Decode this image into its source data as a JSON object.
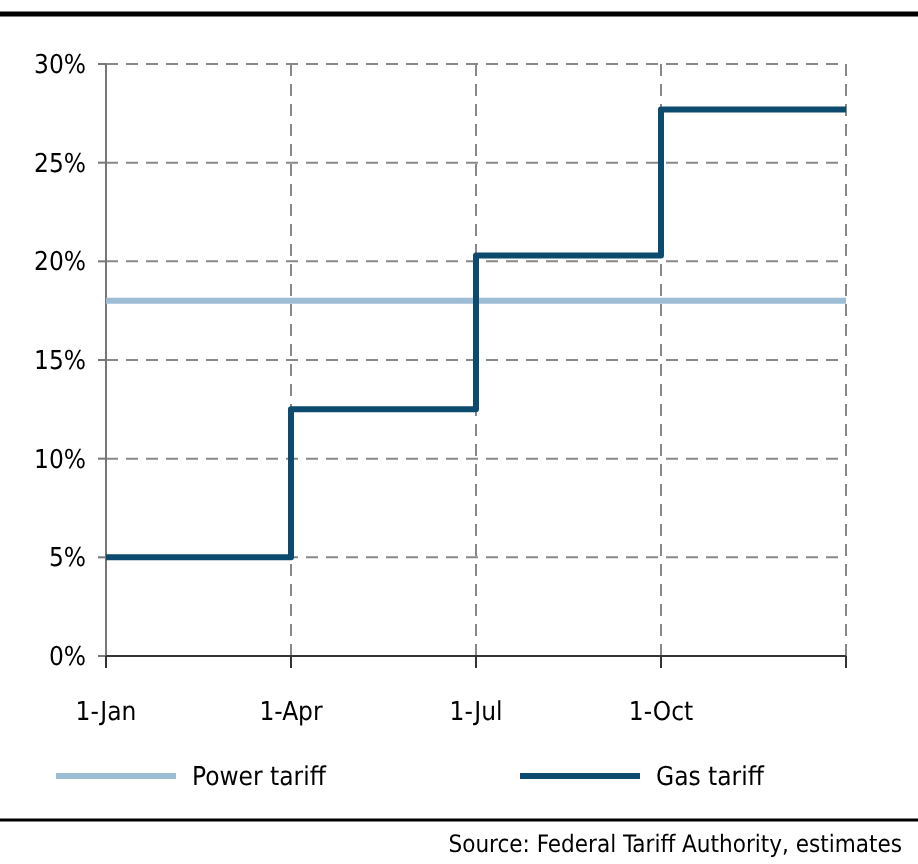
{
  "chart_data": {
    "type": "line",
    "categories": [
      "1-Jan",
      "1-Apr",
      "1-Jul",
      "1-Oct",
      null
    ],
    "series": [
      {
        "name": "Power tariff",
        "color": "#9dbdd5",
        "values": [
          18,
          18,
          18,
          18,
          18
        ]
      },
      {
        "name": "Gas tariff",
        "type": "step",
        "color": "#0c4a6e",
        "values": [
          5,
          12.5,
          20.3,
          27.7,
          27.7
        ]
      }
    ],
    "ylim": [
      0,
      30
    ],
    "yticks": [
      {
        "value": 0,
        "label": "0%"
      },
      {
        "value": 5,
        "label": "5%"
      },
      {
        "value": 10,
        "label": "10%"
      },
      {
        "value": 15,
        "label": "15%"
      },
      {
        "value": 20,
        "label": "20%"
      },
      {
        "value": 25,
        "label": "25%"
      },
      {
        "value": 30,
        "label": "30%"
      }
    ],
    "grid": true,
    "legend": "bottom",
    "marker": "none",
    "annotations": [
      "Source: Federal Tariff Authority, estimates"
    ]
  }
}
